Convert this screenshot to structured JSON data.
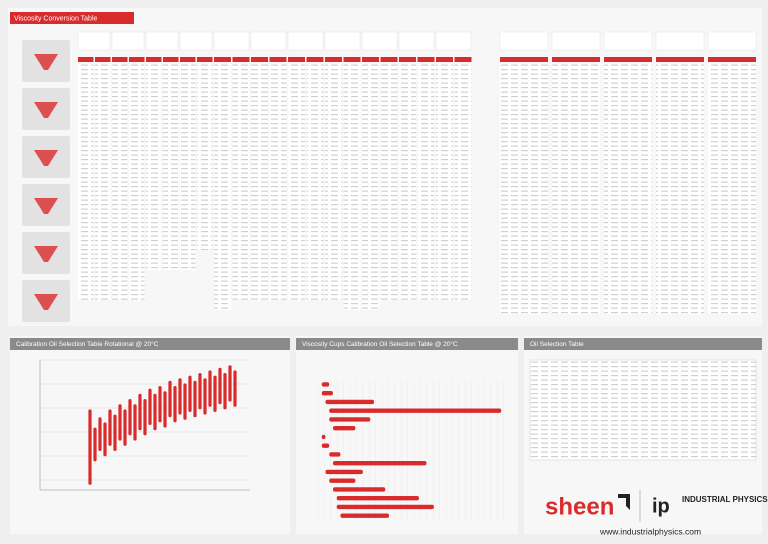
{
  "header": {
    "title": "Viscosity Conversion Table"
  },
  "panels": {
    "rotational": {
      "title": "Calibration Oil Selection Table Rotational @ 20°C"
    },
    "cups": {
      "title": "Viscosity Cups Calibration Oil Selection Table @ 20°C"
    },
    "oil": {
      "title": "Oil Selection Table"
    }
  },
  "rotational_chart": {
    "type": "range-bar",
    "color": "#d92b2b",
    "ylim": [
      0,
      100
    ],
    "lows": [
      4,
      22,
      30,
      26,
      34,
      30,
      38,
      34,
      42,
      38,
      46,
      42,
      50,
      46,
      52,
      48,
      56,
      52,
      58,
      54,
      60,
      56,
      62,
      58,
      64,
      60,
      66,
      62,
      68,
      64
    ],
    "highs": [
      62,
      48,
      56,
      52,
      62,
      58,
      66,
      62,
      70,
      66,
      74,
      70,
      78,
      74,
      80,
      76,
      84,
      80,
      86,
      82,
      88,
      84,
      90,
      86,
      92,
      88,
      94,
      90,
      96,
      92
    ]
  },
  "cups_chart": {
    "type": "horizontal-range-bar",
    "color": "#d92b2b",
    "xlim": [
      0,
      100
    ],
    "starts": [
      2,
      2,
      4,
      6,
      6,
      8,
      2,
      2,
      6,
      8,
      4,
      6,
      8,
      10,
      10,
      12
    ],
    "ends": [
      6,
      8,
      30,
      98,
      28,
      20,
      4,
      6,
      12,
      58,
      24,
      20,
      36,
      54,
      62,
      38
    ]
  },
  "footer": {
    "brand": "sheen",
    "partner": "INDUSTRIAL PHYSICS",
    "url": "www.industrialphysics.com"
  }
}
